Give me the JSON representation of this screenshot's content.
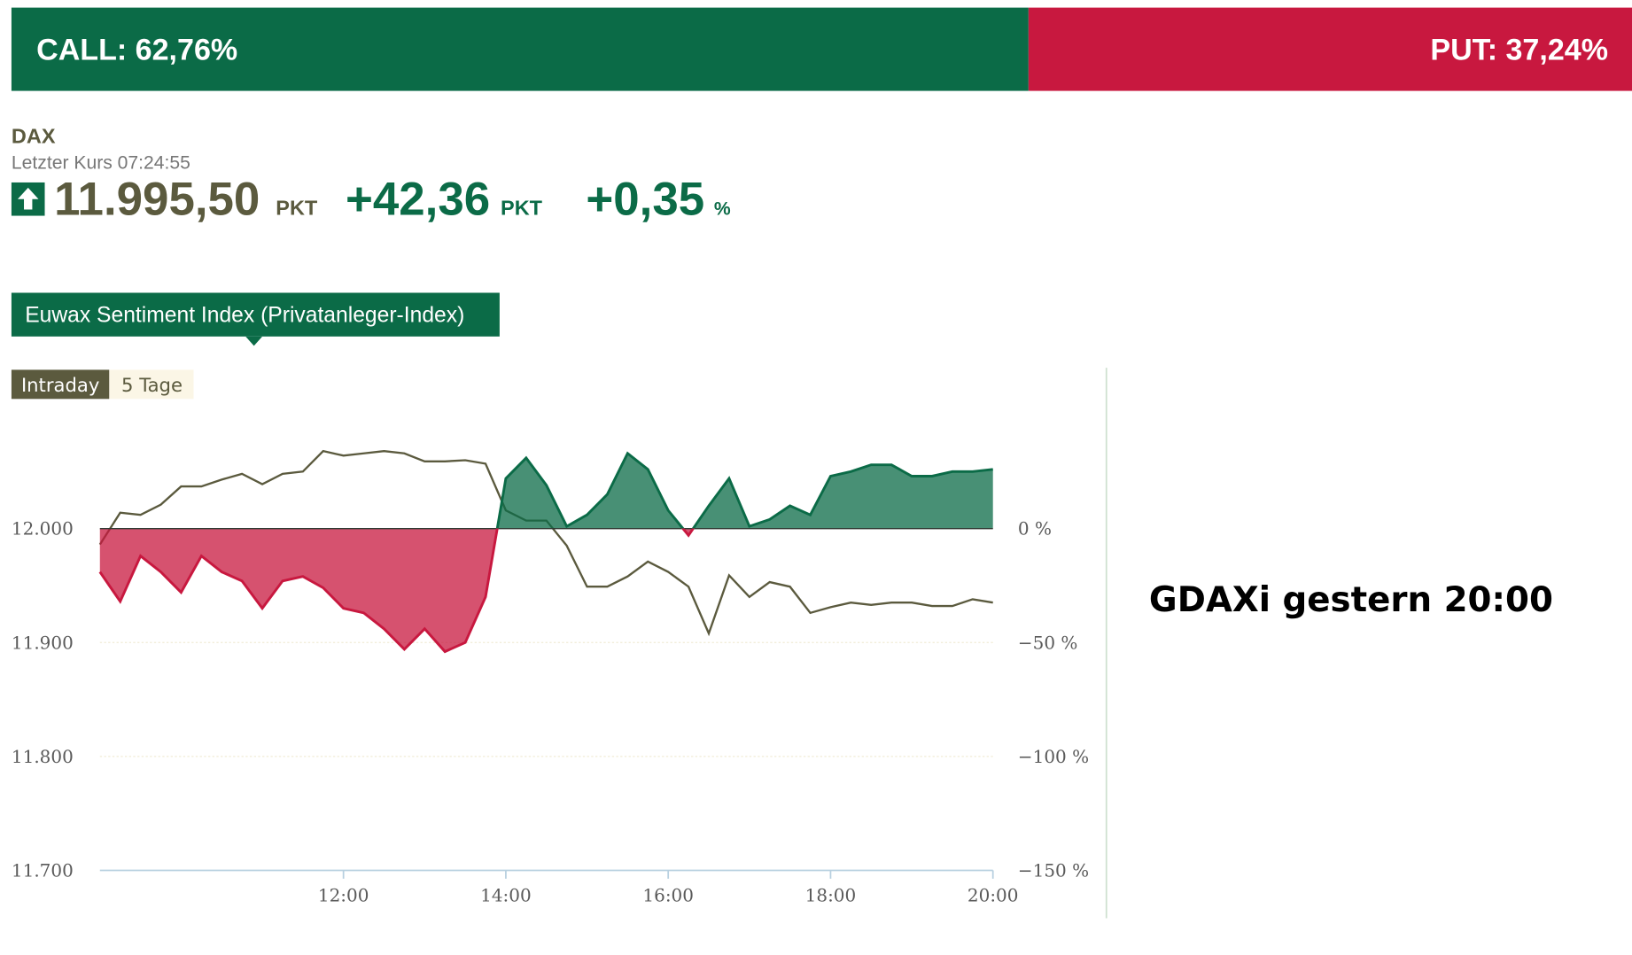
{
  "sentiment_bar": {
    "call_text": "CALL: 62,76%",
    "call_value": 62.76,
    "call_color": "#0b6b47",
    "put_text": "PUT: 37,24%",
    "put_value": 37.24,
    "put_color": "#c8183f"
  },
  "quote": {
    "name": "DAX",
    "last_price": "Letzter Kurs 07:24:55",
    "price": "11.995,50",
    "price_unit": "PKT",
    "change": "+42,36",
    "change_unit": "PKT",
    "change_pct": "+0,35",
    "pct_unit": "%"
  },
  "tab": "Euwax Sentiment Index (Privatanleger-Index)",
  "buttons": [
    "Intraday",
    "5 Tage"
  ],
  "side_note": "GDAXi gestern 20:00",
  "chart_data": {
    "type": "line",
    "x": [
      9,
      9.25,
      9.5,
      9.75,
      10,
      10.25,
      10.5,
      10.75,
      11,
      11.25,
      11.5,
      11.75,
      12,
      12.25,
      12.5,
      12.75,
      13,
      13.25,
      13.5,
      13.75,
      14,
      14.25,
      14.5,
      14.75,
      15,
      15.25,
      15.5,
      15.75,
      16,
      16.25,
      16.5,
      16.75,
      17,
      17.25,
      17.5,
      17.75,
      18,
      18.25,
      18.5,
      18.75,
      19,
      19.25,
      19.5,
      19.75,
      20
    ],
    "xlim": [
      9,
      20
    ],
    "xticks": [
      {
        "value": 12,
        "label": "12:00"
      },
      {
        "value": 14,
        "label": "14:00"
      },
      {
        "value": 16,
        "label": "16:00"
      },
      {
        "value": 18,
        "label": "18:00"
      },
      {
        "value": 20,
        "label": "20:00"
      }
    ],
    "ylim": [
      11700,
      12080
    ],
    "yticks": [
      {
        "value": 11700,
        "label": "11.700"
      },
      {
        "value": 11800,
        "label": "11.800"
      },
      {
        "value": 11900,
        "label": "11.900"
      },
      {
        "value": 12000,
        "label": "12.000"
      }
    ],
    "y2lim": [
      -150,
      40
    ],
    "y2ticks": [
      {
        "value": -150,
        "label": "−150 %"
      },
      {
        "value": -100,
        "label": "−100 %"
      },
      {
        "value": -50,
        "label": "−50 %"
      },
      {
        "value": 0,
        "label": "0 %"
      }
    ],
    "series": [
      {
        "name": "DAX",
        "color": "#5b5a3e",
        "values": [
          11986,
          12014,
          12012,
          12021,
          12037,
          12037,
          12043,
          12048,
          12039,
          12048,
          12050,
          12068,
          12064,
          12066,
          12068,
          12066,
          12059,
          12059,
          12060,
          12057,
          12016,
          12007,
          12007,
          11985,
          11949,
          11949,
          11958,
          11971,
          11962,
          11949,
          11908,
          11959,
          11940,
          11953,
          11949,
          11926,
          11931,
          11935,
          11933,
          11935,
          11935,
          11932,
          11932,
          11938,
          11935
        ]
      },
      {
        "name": "Sentiment",
        "axis": "y2",
        "color": "#0b6b47",
        "negative_color": "#c8183f",
        "values": [
          -19,
          -32,
          -12,
          -19,
          -28,
          -12,
          -19,
          -23,
          -35,
          -23,
          -21,
          -26,
          -35,
          -37,
          -44,
          -53,
          -44,
          -54,
          -50,
          -30,
          22,
          31,
          19,
          1,
          6,
          15,
          33,
          26,
          8,
          -3,
          10,
          22,
          1,
          4,
          10,
          6,
          23,
          25,
          28,
          28,
          23,
          23,
          25,
          25,
          26
        ]
      }
    ]
  }
}
